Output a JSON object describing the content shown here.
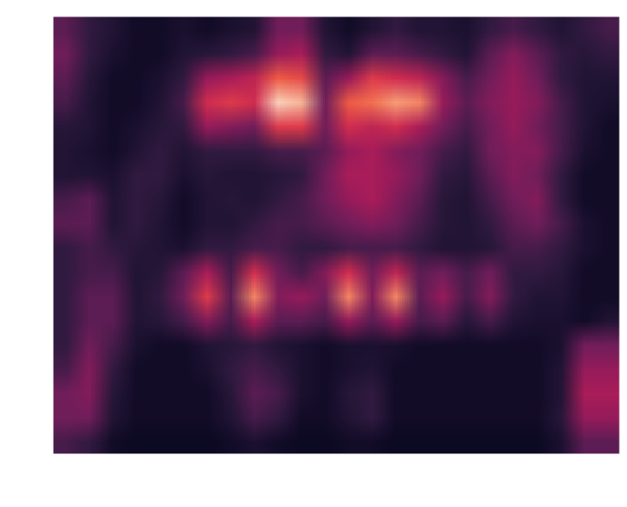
{
  "chart_data": {
    "type": "heatmap",
    "tick_labels": false,
    "color_range": [
      0,
      1
    ],
    "cells": [
      [
        0.25,
        0.15,
        0.1,
        0.05,
        0.05,
        0.08,
        0.05,
        0.08,
        0.1,
        0.3,
        0.3,
        0.1,
        0.05,
        0.1,
        0.15,
        0.1,
        0.1,
        0.08,
        0.15,
        0.2,
        0.15,
        0.1,
        0.15,
        0.2
      ],
      [
        0.3,
        0.15,
        0.08,
        0.05,
        0.05,
        0.1,
        0.12,
        0.15,
        0.2,
        0.4,
        0.45,
        0.15,
        0.1,
        0.25,
        0.25,
        0.2,
        0.15,
        0.1,
        0.25,
        0.35,
        0.25,
        0.15,
        0.12,
        0.15
      ],
      [
        0.25,
        0.12,
        0.05,
        0.05,
        0.08,
        0.15,
        0.4,
        0.45,
        0.5,
        0.7,
        0.65,
        0.25,
        0.4,
        0.6,
        0.55,
        0.5,
        0.35,
        0.2,
        0.3,
        0.4,
        0.3,
        0.15,
        0.1,
        0.1
      ],
      [
        0.2,
        0.1,
        0.05,
        0.05,
        0.1,
        0.2,
        0.55,
        0.6,
        0.55,
        0.95,
        0.9,
        0.3,
        0.7,
        0.75,
        0.85,
        0.8,
        0.4,
        0.25,
        0.35,
        0.4,
        0.35,
        0.2,
        0.1,
        0.08
      ],
      [
        0.12,
        0.1,
        0.05,
        0.08,
        0.12,
        0.15,
        0.4,
        0.35,
        0.3,
        0.6,
        0.6,
        0.3,
        0.55,
        0.5,
        0.55,
        0.45,
        0.3,
        0.2,
        0.3,
        0.4,
        0.3,
        0.2,
        0.1,
        0.05
      ],
      [
        0.1,
        0.08,
        0.05,
        0.1,
        0.15,
        0.1,
        0.15,
        0.15,
        0.15,
        0.2,
        0.2,
        0.25,
        0.4,
        0.45,
        0.35,
        0.3,
        0.2,
        0.15,
        0.3,
        0.35,
        0.35,
        0.2,
        0.08,
        0.05
      ],
      [
        0.1,
        0.1,
        0.08,
        0.15,
        0.15,
        0.08,
        0.12,
        0.1,
        0.1,
        0.12,
        0.15,
        0.3,
        0.45,
        0.45,
        0.4,
        0.3,
        0.15,
        0.12,
        0.25,
        0.35,
        0.3,
        0.15,
        0.05,
        0.05
      ],
      [
        0.2,
        0.25,
        0.1,
        0.15,
        0.12,
        0.05,
        0.1,
        0.12,
        0.1,
        0.15,
        0.2,
        0.3,
        0.4,
        0.45,
        0.35,
        0.25,
        0.12,
        0.1,
        0.2,
        0.3,
        0.35,
        0.15,
        0.05,
        0.05
      ],
      [
        0.25,
        0.25,
        0.1,
        0.15,
        0.1,
        0.05,
        0.1,
        0.1,
        0.15,
        0.2,
        0.2,
        0.25,
        0.3,
        0.35,
        0.3,
        0.2,
        0.12,
        0.1,
        0.15,
        0.25,
        0.3,
        0.2,
        0.08,
        0.05
      ],
      [
        0.15,
        0.2,
        0.15,
        0.12,
        0.1,
        0.08,
        0.15,
        0.15,
        0.2,
        0.2,
        0.15,
        0.15,
        0.2,
        0.2,
        0.2,
        0.15,
        0.1,
        0.1,
        0.12,
        0.2,
        0.2,
        0.15,
        0.08,
        0.05
      ],
      [
        0.15,
        0.2,
        0.2,
        0.1,
        0.12,
        0.25,
        0.45,
        0.2,
        0.55,
        0.3,
        0.2,
        0.35,
        0.55,
        0.3,
        0.5,
        0.25,
        0.3,
        0.2,
        0.3,
        0.15,
        0.15,
        0.12,
        0.05,
        0.05
      ],
      [
        0.15,
        0.25,
        0.25,
        0.1,
        0.15,
        0.3,
        0.6,
        0.25,
        0.8,
        0.35,
        0.4,
        0.3,
        0.8,
        0.35,
        0.8,
        0.25,
        0.4,
        0.2,
        0.35,
        0.15,
        0.1,
        0.1,
        0.05,
        0.05
      ],
      [
        0.15,
        0.25,
        0.25,
        0.1,
        0.12,
        0.2,
        0.35,
        0.2,
        0.45,
        0.25,
        0.25,
        0.2,
        0.4,
        0.25,
        0.4,
        0.2,
        0.25,
        0.12,
        0.2,
        0.1,
        0.08,
        0.08,
        0.05,
        0.1
      ],
      [
        0.15,
        0.3,
        0.2,
        0.08,
        0.05,
        0.05,
        0.1,
        0.12,
        0.15,
        0.1,
        0.08,
        0.05,
        0.08,
        0.08,
        0.08,
        0.05,
        0.05,
        0.05,
        0.05,
        0.05,
        0.05,
        0.08,
        0.3,
        0.3
      ],
      [
        0.2,
        0.35,
        0.15,
        0.05,
        0.05,
        0.05,
        0.08,
        0.15,
        0.2,
        0.15,
        0.08,
        0.05,
        0.08,
        0.1,
        0.05,
        0.05,
        0.05,
        0.05,
        0.05,
        0.05,
        0.05,
        0.1,
        0.4,
        0.4
      ],
      [
        0.3,
        0.35,
        0.12,
        0.05,
        0.05,
        0.05,
        0.05,
        0.12,
        0.25,
        0.2,
        0.08,
        0.05,
        0.12,
        0.15,
        0.05,
        0.05,
        0.05,
        0.05,
        0.05,
        0.05,
        0.05,
        0.1,
        0.45,
        0.45
      ],
      [
        0.3,
        0.3,
        0.1,
        0.05,
        0.05,
        0.05,
        0.05,
        0.1,
        0.2,
        0.15,
        0.05,
        0.05,
        0.1,
        0.15,
        0.05,
        0.05,
        0.05,
        0.05,
        0.05,
        0.05,
        0.05,
        0.12,
        0.4,
        0.4
      ],
      [
        0.2,
        0.15,
        0.05,
        0.03,
        0.03,
        0.03,
        0.03,
        0.05,
        0.08,
        0.05,
        0.03,
        0.03,
        0.05,
        0.05,
        0.03,
        0.03,
        0.03,
        0.03,
        0.03,
        0.03,
        0.03,
        0.08,
        0.25,
        0.25
      ]
    ]
  }
}
